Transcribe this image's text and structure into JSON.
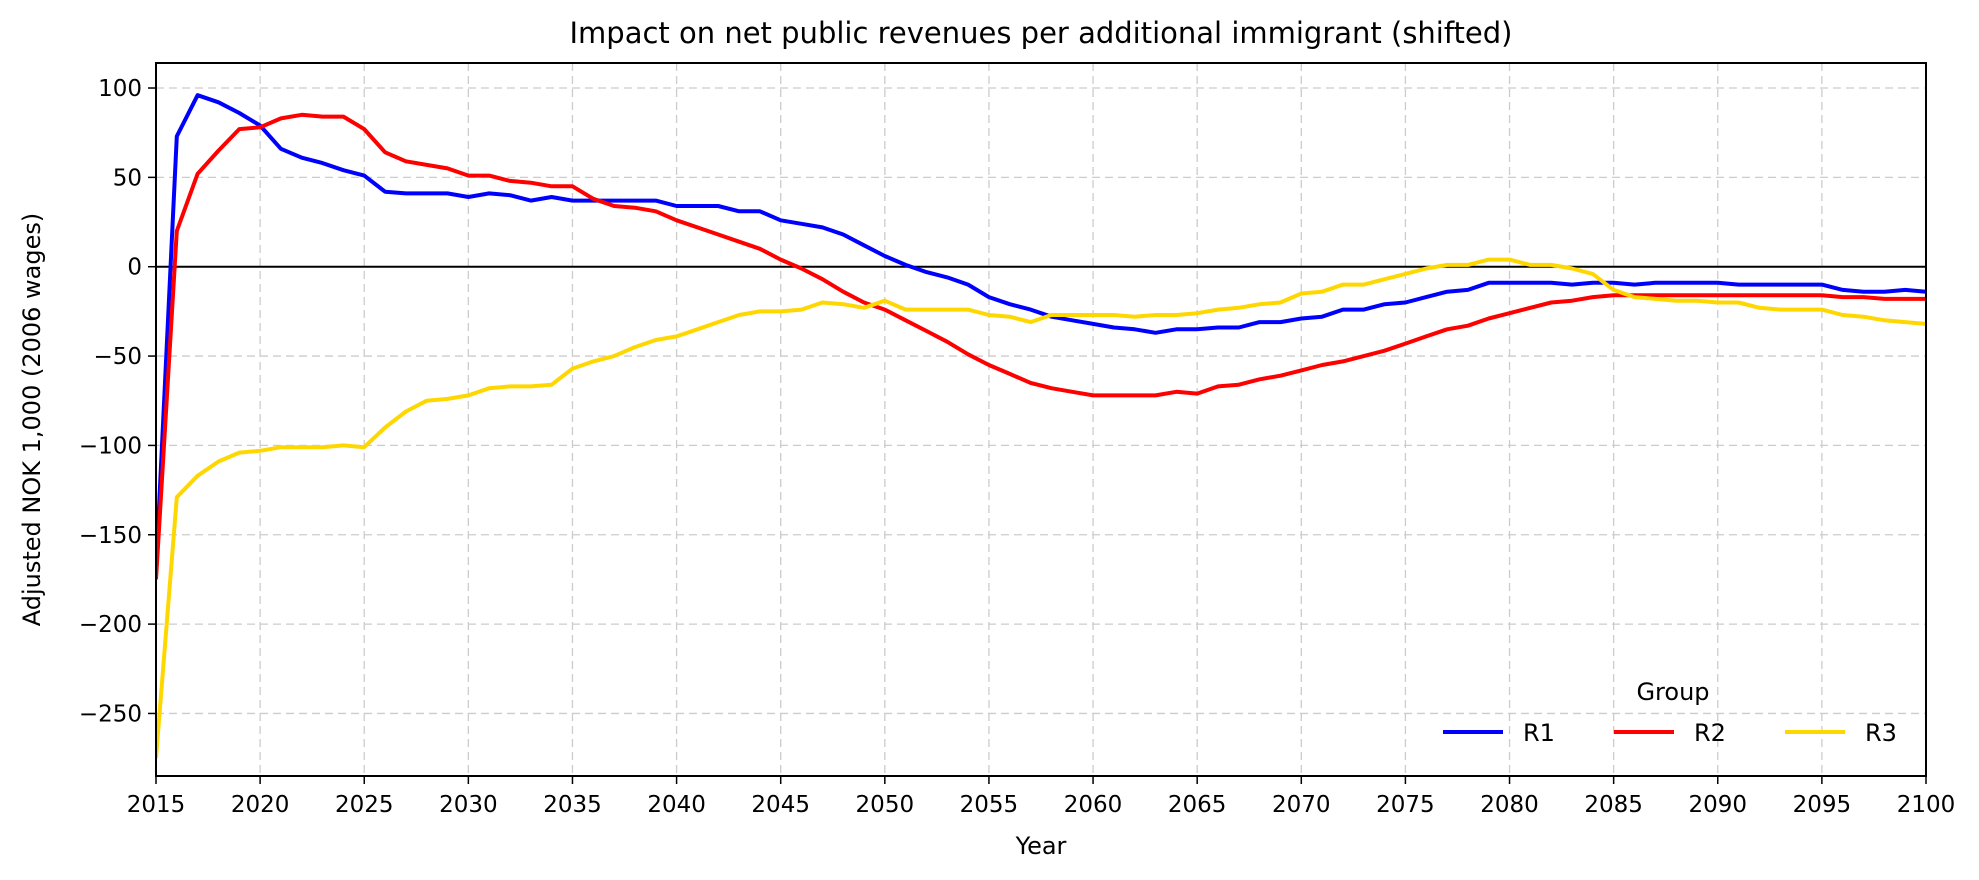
{
  "chart_data": {
    "type": "line",
    "title": "Impact on net public revenues per additional immigrant (shifted)",
    "xlabel": "Year",
    "ylabel": "Adjusted NOK 1,000 (2006 wages)",
    "xlim": [
      2015,
      2100
    ],
    "ylim": [
      -285,
      114
    ],
    "xticks": [
      2015,
      2020,
      2025,
      2030,
      2035,
      2040,
      2045,
      2050,
      2055,
      2060,
      2065,
      2070,
      2075,
      2080,
      2085,
      2090,
      2095,
      2100
    ],
    "yticks": [
      100,
      50,
      0,
      -50,
      -100,
      -150,
      -200,
      -250
    ],
    "ytick_labels": [
      "100",
      "50",
      "0",
      "−50",
      "−100",
      "−150",
      "−200",
      "−250"
    ],
    "grid": true,
    "reference_line": 0,
    "legend": {
      "title": "Group",
      "placement": "lower-right",
      "columns": 3
    },
    "x": [
      2015,
      2016,
      2017,
      2018,
      2019,
      2020,
      2021,
      2022,
      2023,
      2024,
      2025,
      2026,
      2027,
      2028,
      2029,
      2030,
      2031,
      2032,
      2033,
      2034,
      2035,
      2036,
      2037,
      2038,
      2039,
      2040,
      2041,
      2042,
      2043,
      2044,
      2045,
      2046,
      2047,
      2048,
      2049,
      2050,
      2051,
      2052,
      2053,
      2054,
      2055,
      2056,
      2057,
      2058,
      2059,
      2060,
      2061,
      2062,
      2063,
      2064,
      2065,
      2066,
      2067,
      2068,
      2069,
      2070,
      2071,
      2072,
      2073,
      2074,
      2075,
      2076,
      2077,
      2078,
      2079,
      2080,
      2081,
      2082,
      2083,
      2084,
      2085,
      2086,
      2087,
      2088,
      2089,
      2090,
      2091,
      2092,
      2093,
      2094,
      2095,
      2096,
      2097,
      2098,
      2099,
      2100
    ],
    "series": [
      {
        "name": "R1",
        "color": "#0000ff",
        "values": [
          -170,
          73,
          96,
          92,
          86,
          79,
          66,
          61,
          58,
          54,
          51,
          42,
          41,
          41,
          41,
          39,
          41,
          40,
          37,
          39,
          37,
          37,
          37,
          37,
          37,
          34,
          34,
          34,
          31,
          31,
          26,
          24,
          22,
          18,
          12,
          6,
          1,
          -3,
          -6,
          -10,
          -17,
          -21,
          -24,
          -28,
          -30,
          -32,
          -34,
          -35,
          -37,
          -35,
          -35,
          -34,
          -34,
          -31,
          -31,
          -29,
          -28,
          -24,
          -24,
          -21,
          -20,
          -17,
          -14,
          -13,
          -9,
          -9,
          -9,
          -9,
          -10,
          -9,
          -9,
          -10,
          -9,
          -9,
          -9,
          -9,
          -10,
          -10,
          -10,
          -10,
          -10,
          -13,
          -14,
          -14,
          -13,
          -14
        ]
      },
      {
        "name": "R2",
        "color": "#ff0000",
        "values": [
          -175,
          20,
          52,
          65,
          77,
          78,
          83,
          85,
          84,
          84,
          77,
          64,
          59,
          57,
          55,
          51,
          51,
          48,
          47,
          45,
          45,
          38,
          34,
          33,
          31,
          26,
          22,
          18,
          14,
          10,
          4,
          -1,
          -7,
          -14,
          -20,
          -24,
          -30,
          -36,
          -42,
          -49,
          -55,
          -60,
          -65,
          -68,
          -70,
          -72,
          -72,
          -72,
          -72,
          -70,
          -71,
          -67,
          -66,
          -63,
          -61,
          -58,
          -55,
          -53,
          -50,
          -47,
          -43,
          -39,
          -35,
          -33,
          -29,
          -26,
          -23,
          -20,
          -19,
          -17,
          -16,
          -16,
          -16,
          -16,
          -16,
          -16,
          -16,
          -16,
          -16,
          -16,
          -16,
          -17,
          -17,
          -18,
          -18,
          -18
        ]
      },
      {
        "name": "R3",
        "color": "#ffd700",
        "values": [
          -275,
          -129,
          -117,
          -109,
          -104,
          -103,
          -101,
          -101,
          -101,
          -100,
          -101,
          -90,
          -81,
          -75,
          -74,
          -72,
          -68,
          -67,
          -67,
          -66,
          -57,
          -53,
          -50,
          -45,
          -41,
          -39,
          -35,
          -31,
          -27,
          -25,
          -25,
          -24,
          -20,
          -21,
          -23,
          -19,
          -24,
          -24,
          -24,
          -24,
          -27,
          -28,
          -31,
          -27,
          -27,
          -27,
          -27,
          -28,
          -27,
          -27,
          -26,
          -24,
          -23,
          -21,
          -20,
          -15,
          -14,
          -10,
          -10,
          -7,
          -4,
          -1,
          1,
          1,
          4,
          4,
          1,
          1,
          -1,
          -4,
          -13,
          -17,
          -18,
          -19,
          -19,
          -20,
          -20,
          -23,
          -24,
          -24,
          -24,
          -27,
          -28,
          -30,
          -31,
          -32
        ]
      }
    ]
  }
}
